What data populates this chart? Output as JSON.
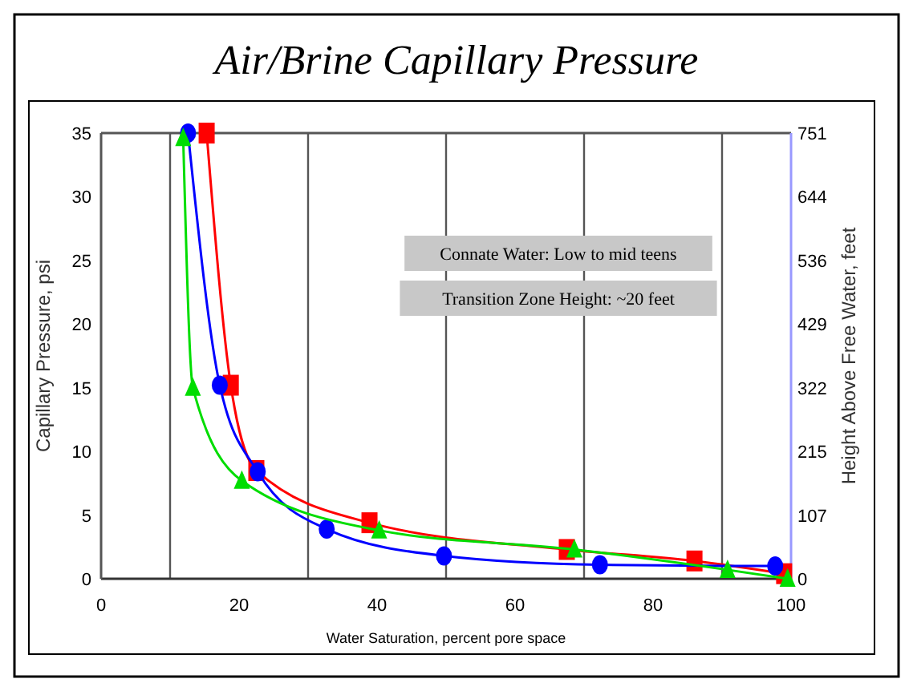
{
  "chart_data": {
    "type": "line",
    "title": "Air/Brine Capillary Pressure",
    "xlabel": "Water Saturation, percent pore space",
    "ylabel": "Capillary Pressure, psi",
    "y2label": "Height Above Free Water, feet",
    "annotations": [
      "Connate Water: Low to mid teens",
      "Transition Zone Height: ~20 feet"
    ],
    "xlim": [
      0,
      100
    ],
    "xticks": [
      0,
      20,
      40,
      60,
      80,
      100
    ],
    "ylim": [
      0,
      35
    ],
    "yticks": [
      0,
      5,
      10,
      15,
      20,
      25,
      30,
      35
    ],
    "y2lim": [
      0,
      751
    ],
    "y2ticks": [
      {
        "value": 0,
        "label": "0"
      },
      {
        "value": 107.3,
        "label": "107"
      },
      {
        "value": 214.6,
        "label": "215"
      },
      {
        "value": 321.9,
        "label": "322"
      },
      {
        "value": 429.1,
        "label": "429"
      },
      {
        "value": 536.4,
        "label": "536"
      },
      {
        "value": 643.7,
        "label": "644"
      },
      751
    ],
    "ref_lines": [
      {
        "axis": "x",
        "value": 10,
        "color": "#555555"
      },
      {
        "axis": "x",
        "value": 30,
        "color": "#555555"
      },
      {
        "axis": "x",
        "value": 50,
        "color": "#555555"
      },
      {
        "axis": "x",
        "value": 70,
        "color": "#555555"
      },
      {
        "axis": "x",
        "value": 90,
        "color": "#555555"
      }
    ],
    "grid": false,
    "line_style": "solid",
    "series": [
      {
        "color": "#ff0000",
        "marker": "square",
        "x": [
          15.3,
          18.8,
          22.5,
          38.9,
          67.5,
          86,
          99
        ],
        "values": [
          35,
          15.2,
          8.5,
          4.4,
          2.3,
          1.4,
          0.4
        ]
      },
      {
        "color": "#0000ff",
        "marker": "circle",
        "x": [
          12.6,
          17.2,
          22.7,
          32.7,
          49.7,
          72.3,
          97.7
        ],
        "values": [
          35,
          15.2,
          8.4,
          3.9,
          1.8,
          1.1,
          1
        ]
      },
      {
        "color": "#00dd00",
        "marker": "triangle",
        "x": [
          11.9,
          13.3,
          20.4,
          40.3,
          68.6,
          90.8,
          99.5
        ],
        "values": [
          34.6,
          15,
          7.7,
          3.8,
          2.3,
          0.7,
          0
        ]
      }
    ]
  }
}
